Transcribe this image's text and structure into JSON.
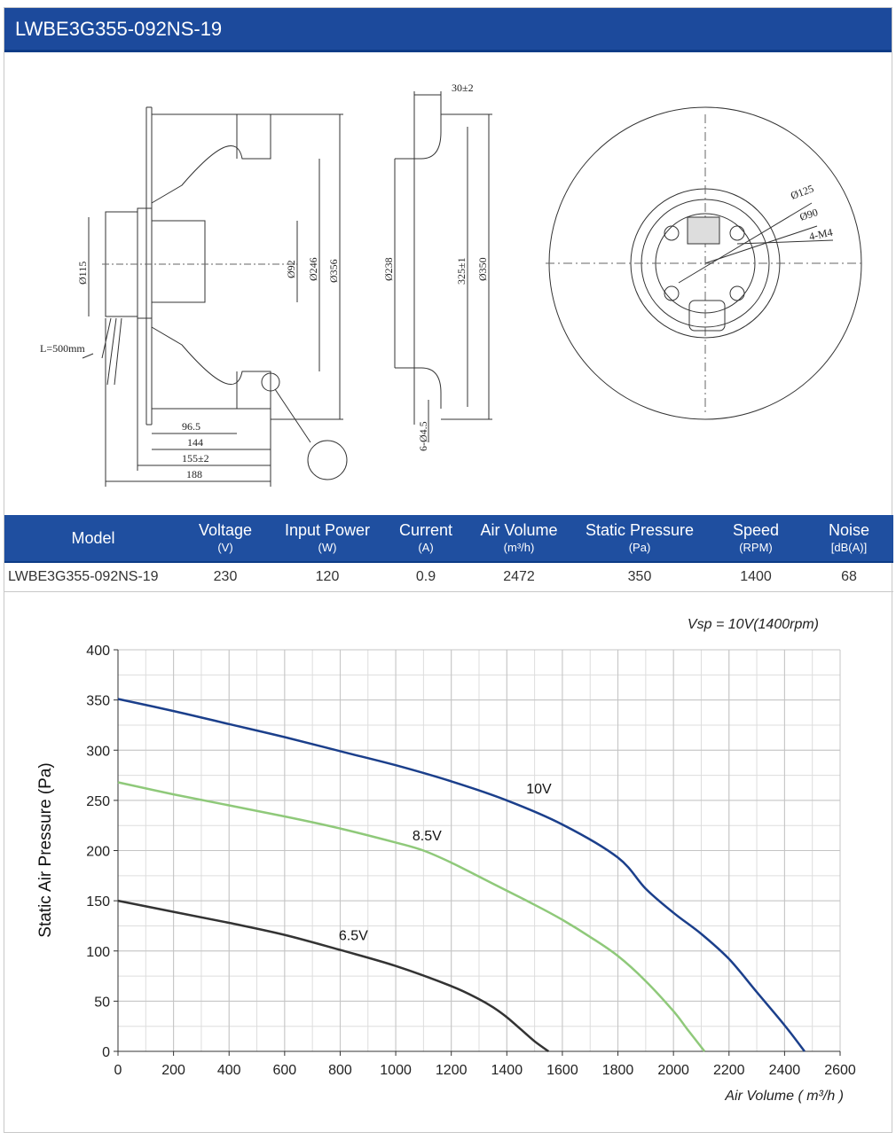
{
  "header": {
    "title": "LWBE3G355-092NS-19"
  },
  "drawing": {
    "labels": {
      "cable": "L=500mm",
      "d115": "Ø115",
      "d92": "Ø92",
      "d246": "Ø246",
      "d356": "Ø356",
      "w96": "96.5",
      "w144": "144",
      "w155": "155±2",
      "w188": "188",
      "w30": "30±2",
      "d238": "Ø238",
      "d325": "325±1",
      "d350": "Ø350",
      "holes": "6-Ø4.5",
      "c125": "Ø125",
      "c90": "Ø90",
      "m4": "4-M4"
    }
  },
  "specs": {
    "headers": [
      {
        "label": "Model",
        "unit": ""
      },
      {
        "label": "Voltage",
        "unit": "(V)"
      },
      {
        "label": "Input Power",
        "unit": "(W)"
      },
      {
        "label": "Current",
        "unit": "(A)"
      },
      {
        "label": "Air Volume",
        "unit": "(m³/h)"
      },
      {
        "label": "Static Pressure",
        "unit": "(Pa)"
      },
      {
        "label": "Speed",
        "unit": "(RPM)"
      },
      {
        "label": "Noise",
        "unit": "[dB(A)]"
      }
    ],
    "row": [
      "LWBE3G355-092NS-19",
      "230",
      "120",
      "0.9",
      "2472",
      "350",
      "1400",
      "68"
    ]
  },
  "chart_data": {
    "type": "line",
    "title": "Vsp = 10V(1400rpm)",
    "xlabel": "Air Volume ( m³/h )",
    "ylabel": "Static Air Pressure  (Pa)",
    "xlim": [
      0,
      2600
    ],
    "ylim": [
      0,
      400
    ],
    "xticks": [
      0,
      200,
      400,
      600,
      800,
      1000,
      1200,
      1400,
      1600,
      1800,
      2000,
      2200,
      2400,
      2600
    ],
    "yticks": [
      0,
      50,
      100,
      150,
      200,
      250,
      300,
      350,
      400
    ],
    "grid": true,
    "series": [
      {
        "name": "10V",
        "color": "#1b3f8b",
        "x": [
          0,
          200,
          400,
          600,
          800,
          1000,
          1200,
          1400,
          1600,
          1800,
          1900,
          2000,
          2100,
          2200,
          2300,
          2400,
          2472
        ],
        "y": [
          351,
          339,
          326,
          313,
          299,
          285,
          269,
          250,
          226,
          193,
          162,
          138,
          117,
          92,
          59,
          26,
          0
        ]
      },
      {
        "name": "8.5V",
        "color": "#8fc97a",
        "x": [
          0,
          200,
          400,
          600,
          800,
          1000,
          1100,
          1200,
          1300,
          1400,
          1500,
          1600,
          1700,
          1800,
          1900,
          2000,
          2050,
          2112
        ],
        "y": [
          268,
          256,
          245,
          234,
          222,
          208,
          200,
          188,
          174,
          160,
          146,
          131,
          114,
          95,
          70,
          40,
          22,
          0
        ]
      },
      {
        "name": "6.5V",
        "color": "#333333",
        "x": [
          0,
          200,
          400,
          600,
          800,
          1000,
          1200,
          1300,
          1350,
          1400,
          1450,
          1500,
          1550
        ],
        "y": [
          150,
          139,
          128,
          116,
          101,
          85,
          65,
          52,
          44,
          34,
          22,
          10,
          0
        ]
      }
    ],
    "series_labels": [
      {
        "text": "10V",
        "x": 1470,
        "y": 257
      },
      {
        "text": "8.5V",
        "x": 1060,
        "y": 210
      },
      {
        "text": "6.5V",
        "x": 795,
        "y": 111
      }
    ]
  }
}
